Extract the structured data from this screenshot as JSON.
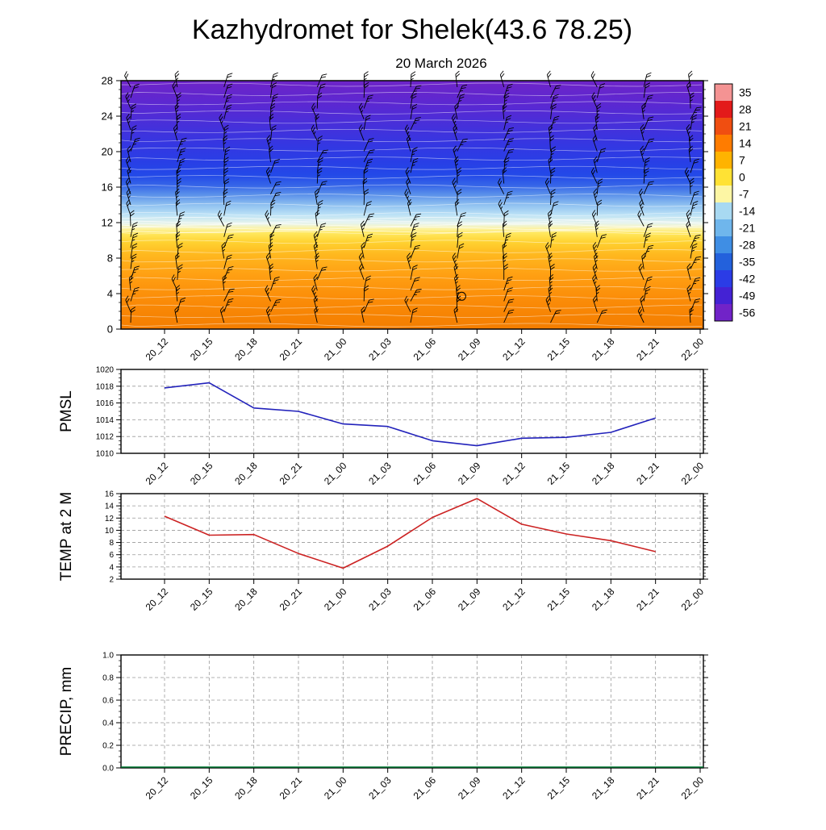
{
  "title": "Kazhydromet for Shelek(43.6 78.25)",
  "subtitle": "20 March 2026",
  "time_labels": [
    "20_12",
    "20_15",
    "20_18",
    "20_21",
    "21_00",
    "21_03",
    "21_06",
    "21_09",
    "21_12",
    "21_15",
    "21_18",
    "21_21",
    "22_00"
  ],
  "chart_data": [
    {
      "type": "heatmap",
      "name": "temperature-height-cross-section",
      "title": "",
      "ylabel": "",
      "ylim": [
        0,
        28
      ],
      "y_ticks": [
        0,
        4,
        8,
        12,
        16,
        20,
        24,
        28
      ],
      "x_categories": [
        "20_12",
        "20_15",
        "20_18",
        "20_21",
        "21_00",
        "21_03",
        "21_06",
        "21_09",
        "21_12",
        "21_15",
        "21_18",
        "21_21",
        "22_00"
      ],
      "overlay": "wind-barbs",
      "colorbar": {
        "ticks": [
          35,
          28,
          21,
          14,
          7,
          0,
          -7,
          -14,
          -21,
          -28,
          -35,
          -42,
          -49,
          -56
        ],
        "colors": [
          "#f49393",
          "#e31a1a",
          "#f04e11",
          "#ff7c00",
          "#ffb300",
          "#ffe234",
          "#fdf6a4",
          "#a8d9f2",
          "#6fb6ec",
          "#3f8ee4",
          "#2361dc",
          "#2b3ce6",
          "#4422d4",
          "#7123c8"
        ]
      },
      "field_gradient": [
        {
          "pos": 0.0,
          "color": "#6e24c8"
        },
        {
          "pos": 0.1,
          "color": "#5a28d2"
        },
        {
          "pos": 0.18,
          "color": "#4630da"
        },
        {
          "pos": 0.26,
          "color": "#3437e2"
        },
        {
          "pos": 0.33,
          "color": "#283fe6"
        },
        {
          "pos": 0.38,
          "color": "#2349e8"
        },
        {
          "pos": 0.42,
          "color": "#3564e8"
        },
        {
          "pos": 0.46,
          "color": "#5c92ea"
        },
        {
          "pos": 0.5,
          "color": "#8ec0f0"
        },
        {
          "pos": 0.54,
          "color": "#bce2f6"
        },
        {
          "pos": 0.575,
          "color": "#e8f4ec"
        },
        {
          "pos": 0.595,
          "color": "#fcf3a6"
        },
        {
          "pos": 0.615,
          "color": "#ffe75c"
        },
        {
          "pos": 0.65,
          "color": "#ffd231"
        },
        {
          "pos": 0.7,
          "color": "#ffb81f"
        },
        {
          "pos": 0.78,
          "color": "#ffa013"
        },
        {
          "pos": 0.88,
          "color": "#fb8c08"
        },
        {
          "pos": 1.0,
          "color": "#f37d00"
        }
      ],
      "annotations": [
        {
          "type": "closed-contour-circle",
          "x_frac": 0.585,
          "height_km": 3.7
        }
      ]
    },
    {
      "type": "line",
      "name": "PMSL",
      "ylabel": "PMSL",
      "color": "#2222bb",
      "ylim": [
        1010,
        1020
      ],
      "y_ticks": [
        1010,
        1012,
        1014,
        1016,
        1018,
        1020
      ],
      "y_tick_labels": [
        "1010",
        "1012",
        "1014",
        "1016",
        "1018",
        "1020"
      ],
      "minor_step": 0.5,
      "x": [
        "20_12",
        "20_15",
        "20_18",
        "20_21",
        "21_00",
        "21_03",
        "21_06",
        "21_09",
        "21_12",
        "21_15",
        "21_18",
        "21_21"
      ],
      "values": [
        1017.8,
        1018.4,
        1015.4,
        1015.0,
        1013.5,
        1013.2,
        1011.5,
        1010.9,
        1011.8,
        1011.9,
        1012.5,
        1014.2
      ]
    },
    {
      "type": "line",
      "name": "TEMP-at-2M",
      "ylabel": "TEMP at 2 M",
      "color": "#cc2222",
      "ylim": [
        2,
        16
      ],
      "y_ticks": [
        2,
        4,
        6,
        8,
        10,
        12,
        14,
        16
      ],
      "y_tick_labels": [
        "2",
        "4",
        "6",
        "8",
        "10",
        "12",
        "14",
        "16"
      ],
      "minor_step": 0.5,
      "x": [
        "20_12",
        "20_15",
        "20_18",
        "20_21",
        "21_00",
        "21_03",
        "21_06",
        "21_09",
        "21_12",
        "21_15",
        "21_18",
        "21_21"
      ],
      "values": [
        12.3,
        9.2,
        9.3,
        6.2,
        3.8,
        7.4,
        12.1,
        15.2,
        11.0,
        9.4,
        8.3,
        6.5
      ]
    },
    {
      "type": "line",
      "name": "PRECIP",
      "ylabel": "PRECIP, mm",
      "color": "#007a33",
      "ylim": [
        0,
        1
      ],
      "y_ticks": [
        0,
        0.2,
        0.4,
        0.6,
        0.8,
        1
      ],
      "y_tick_labels": [
        "0.0",
        "0.2",
        "0.4",
        "0.6",
        "0.8",
        "1.0"
      ],
      "minor_step": 0.05,
      "full_width_zero": true,
      "x": [
        "20_12",
        "20_15",
        "20_18",
        "20_21",
        "21_00",
        "21_03",
        "21_06",
        "21_09",
        "21_12",
        "21_15",
        "21_18",
        "21_21",
        "22_00"
      ],
      "values": [
        0,
        0,
        0,
        0,
        0,
        0,
        0,
        0,
        0,
        0,
        0,
        0,
        0
      ]
    }
  ]
}
